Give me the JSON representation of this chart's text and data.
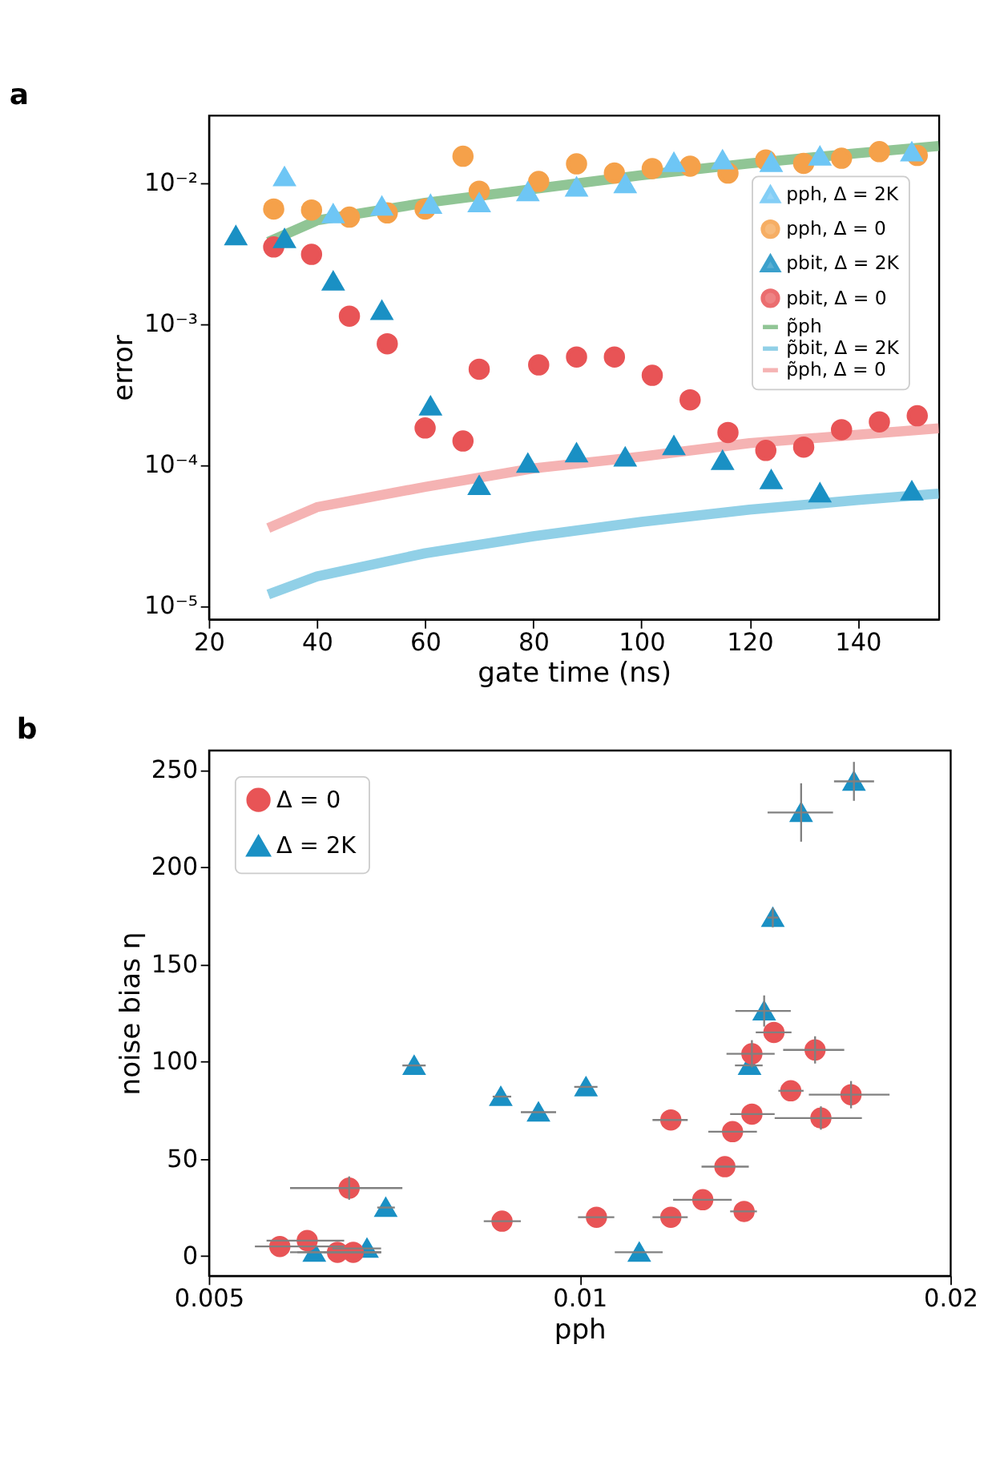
{
  "chart_data": [
    {
      "type": "scatter",
      "title": "a",
      "xlabel": "gate time (ns)",
      "ylabel": "error",
      "log": "y",
      "legend": "right",
      "xlim": [
        20,
        155
      ],
      "xticks": [
        20,
        40,
        60,
        80,
        100,
        120,
        140
      ],
      "ylim": [
        8e-06,
        0.03
      ],
      "yticks": [
        {
          "value": 1e-05,
          "label": "10⁻⁵"
        },
        {
          "value": 0.0001,
          "label": "10⁻⁴"
        },
        {
          "value": 0.001,
          "label": "10⁻³"
        },
        {
          "value": 0.01,
          "label": "10⁻²"
        }
      ],
      "series": [
        {
          "name": "pph, Δ = 2K",
          "type": "scatter",
          "marker": "triangle",
          "color": "#6ec6f5",
          "x": [
            34,
            43,
            52,
            61,
            70,
            79,
            88,
            97,
            106,
            115,
            124,
            133,
            150
          ],
          "values": [
            0.011,
            0.006,
            0.0068,
            0.007,
            0.0072,
            0.0086,
            0.0093,
            0.0098,
            0.0139,
            0.0145,
            0.0139,
            0.0154,
            0.0165
          ]
        },
        {
          "name": "pph, Δ = 0",
          "type": "scatter",
          "marker": "circle",
          "color": "#f5a14a",
          "x": [
            32,
            39,
            46,
            53,
            60,
            67,
            70,
            81,
            88,
            95,
            102,
            109,
            116,
            123,
            130,
            137,
            144,
            151
          ],
          "values": [
            0.0065,
            0.0064,
            0.0057,
            0.0061,
            0.0065,
            0.0154,
            0.0087,
            0.0102,
            0.0136,
            0.0117,
            0.0126,
            0.0131,
            0.0117,
            0.0145,
            0.0137,
            0.0149,
            0.0166,
            0.0156
          ]
        },
        {
          "name": "pbit, Δ = 2K",
          "type": "scatter",
          "marker": "triangle",
          "color": "#1a90c4",
          "x": [
            25,
            34,
            43,
            52,
            61,
            70,
            79,
            88,
            97,
            106,
            115,
            124,
            133,
            150
          ],
          "values": [
            0.0042,
            0.004,
            0.002,
            0.00124,
            0.00026,
            7.1e-05,
            0.000102,
            0.000121,
            0.000113,
            0.000136,
            0.000107,
            7.8e-05,
            6.3e-05,
            6.5e-05
          ]
        },
        {
          "name": "pbit, Δ = 0",
          "type": "scatter",
          "marker": "circle",
          "color": "#e85456",
          "x": [
            32,
            39,
            46,
            53,
            60,
            67,
            70,
            81,
            88,
            95,
            102,
            109,
            116,
            123,
            130,
            137,
            144,
            151
          ],
          "values": [
            0.0035,
            0.0031,
            0.00113,
            0.00072,
            0.000182,
            0.000147,
            0.000475,
            0.00051,
            0.00058,
            0.00058,
            0.00043,
            0.000288,
            0.000169,
            0.000126,
            0.000133,
            0.000177,
            0.000201,
            0.000222
          ]
        },
        {
          "name": "p̃ph",
          "type": "line",
          "color": "#7dbb83",
          "x": [
            31,
            40,
            60,
            80,
            100,
            120,
            140,
            155
          ],
          "values": [
            0.0038,
            0.0054,
            0.0072,
            0.009,
            0.0113,
            0.0137,
            0.0162,
            0.0182
          ]
        },
        {
          "name": "p̃bit, Δ = 2K",
          "type": "line",
          "color": "#7ec8e3",
          "x": [
            31,
            40,
            60,
            80,
            100,
            120,
            140,
            155
          ],
          "values": [
            1.2e-05,
            1.61e-05,
            2.35e-05,
            3.1e-05,
            3.93e-05,
            4.79e-05,
            5.6e-05,
            6.22e-05
          ]
        },
        {
          "name": "p̃ph, Δ = 0",
          "type": "line",
          "color": "#f4a6a6",
          "x": [
            31,
            40,
            60,
            80,
            100,
            120,
            140,
            155
          ],
          "values": [
            3.55e-05,
            4.99e-05,
            6.95e-05,
            9.4e-05,
            0.000114,
            0.000142,
            0.000163,
            0.000181
          ]
        }
      ]
    },
    {
      "type": "scatter",
      "title": "b",
      "xlabel": "pph",
      "ylabel": "noise bias η",
      "log": "x",
      "legend": "top left",
      "xlim": [
        0.005,
        0.02
      ],
      "xticks": [
        0.005,
        0.01,
        0.02
      ],
      "ylim": [
        -10,
        260
      ],
      "yticks": [
        0,
        50,
        100,
        150,
        200,
        250
      ],
      "series": [
        {
          "name": "Δ = 0",
          "marker": "circle",
          "color": "#e85456",
          "x": [
            0.00571,
            0.00601,
            0.00636,
            0.00655,
            0.0065,
            0.00865,
            0.01032,
            0.01186,
            0.01186,
            0.01259,
            0.01312,
            0.0136,
            0.01331,
            0.0138,
            0.0138,
            0.01438,
            0.01484,
            0.01553,
            0.0157,
            0.01661
          ],
          "values": [
            5,
            8,
            2,
            2,
            35,
            18,
            20,
            20,
            70,
            29,
            46,
            23,
            64,
            73,
            104,
            115,
            85,
            106,
            71,
            83
          ],
          "errors": [
            null,
            null,
            null,
            null,
            6,
            null,
            null,
            null,
            null,
            null,
            null,
            null,
            null,
            null,
            7,
            null,
            null,
            7,
            6,
            7
          ],
          "xerrors": [
            [
              0.00545,
              0.00644
            ],
            [
              0.00557,
              0.00644
            ],
            [
              0.0059,
              0.0069
            ],
            [
              0.0062,
              0.0069
            ],
            [
              0.00582,
              0.00718
            ],
            [
              0.00836,
              0.00896
            ],
            [
              0.00997,
              0.01067
            ],
            [
              0.01146,
              0.01224
            ],
            [
              0.01146,
              0.01224
            ],
            [
              0.01191,
              0.01329
            ],
            [
              0.01256,
              0.01372
            ],
            [
              0.01325,
              0.01393
            ],
            [
              0.01272,
              0.01393
            ],
            [
              0.01325,
              0.0144
            ],
            [
              0.01316,
              0.0144
            ],
            [
              0.0139,
              0.01486
            ],
            [
              0.0145,
              0.0152
            ],
            [
              0.01463,
              0.0164
            ],
            [
              0.0144,
              0.01695
            ],
            [
              0.01535,
              0.01785
            ]
          ]
        },
        {
          "name": "Δ = 2K",
          "marker": "triangle",
          "color": "#1a90c4",
          "x": [
            0.00609,
            0.00672,
            0.00696,
            0.00734,
            0.00863,
            0.00926,
            0.01012,
            0.01118,
            0.01374,
            0.01412,
            0.01435,
            0.01513,
            0.0167
          ],
          "values": [
            2,
            4,
            25,
            98,
            82,
            74,
            87,
            2,
            98,
            126,
            174,
            228,
            244
          ],
          "errors": [
            null,
            null,
            null,
            null,
            null,
            null,
            null,
            null,
            null,
            8,
            5,
            15,
            10
          ],
          "xerrors": [
            [
              0.00582,
              0.0069
            ],
            [
              0.0063,
              0.0069
            ],
            [
              0.00685,
              0.00708
            ],
            [
              0.00718,
              0.0075
            ],
            [
              0.0085,
              0.0088
            ],
            [
              0.00896,
              0.00957
            ],
            [
              0.0099,
              0.01034
            ],
            [
              0.01068,
              0.01168
            ],
            [
              0.01337,
              0.01408
            ],
            [
              0.01338,
              0.01484
            ],
            [
              0.0142,
              0.0145
            ],
            [
              0.01421,
              0.01606
            ],
            [
              0.01609,
              0.01734
            ]
          ]
        }
      ]
    }
  ]
}
